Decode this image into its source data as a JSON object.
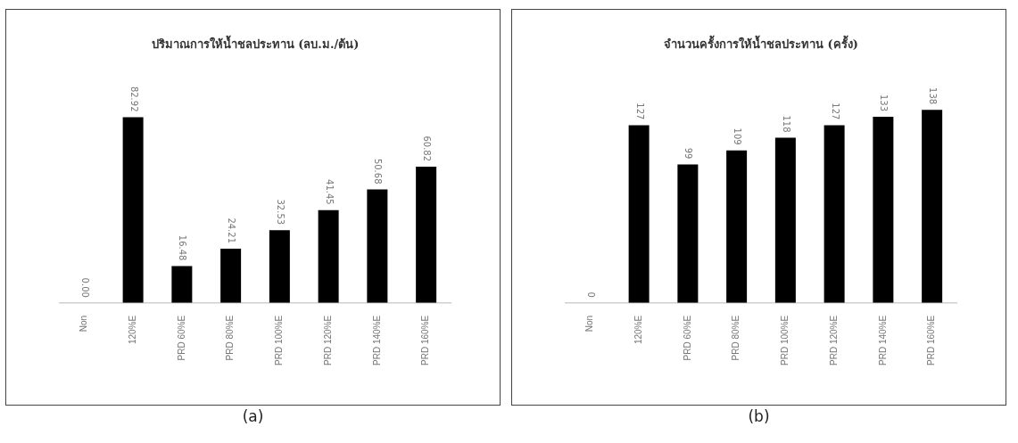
{
  "chart_data": [
    {
      "type": "bar",
      "title": "ปริมาณการให้น้ำชลประทาน (ลบ.ม./ต้น)",
      "categories": [
        "Non",
        "120%E",
        "PRD 60%E",
        "PRD 80%E",
        "PRD 100%E",
        "PRD 120%E",
        "PRD 140%E",
        "PRD 160%E"
      ],
      "values": [
        0.0,
        82.92,
        16.48,
        24.21,
        32.53,
        41.45,
        50.68,
        60.82
      ],
      "value_labels": [
        "0.00",
        "82.92",
        "16.48",
        "24.21",
        "32.53",
        "41.45",
        "50.68",
        "60.82"
      ],
      "color": "#000000",
      "tick_labels": "x",
      "annotations": [
        "(a)"
      ]
    },
    {
      "type": "bar",
      "title": "จำนวนครั้งการให้น้ำชลประทาน (ครั้ง)",
      "categories": [
        "Non",
        "120%E",
        "PRD 60%E",
        "PRD 80%E",
        "PRD 100%E",
        "PRD 120%E",
        "PRD 140%E",
        "PRD 160%E"
      ],
      "values": [
        0,
        127,
        99,
        109,
        118,
        127,
        133,
        138
      ],
      "color": "#000000",
      "data_labels": true,
      "tick_labels": "x",
      "annotations": [
        "(b)"
      ]
    }
  ]
}
